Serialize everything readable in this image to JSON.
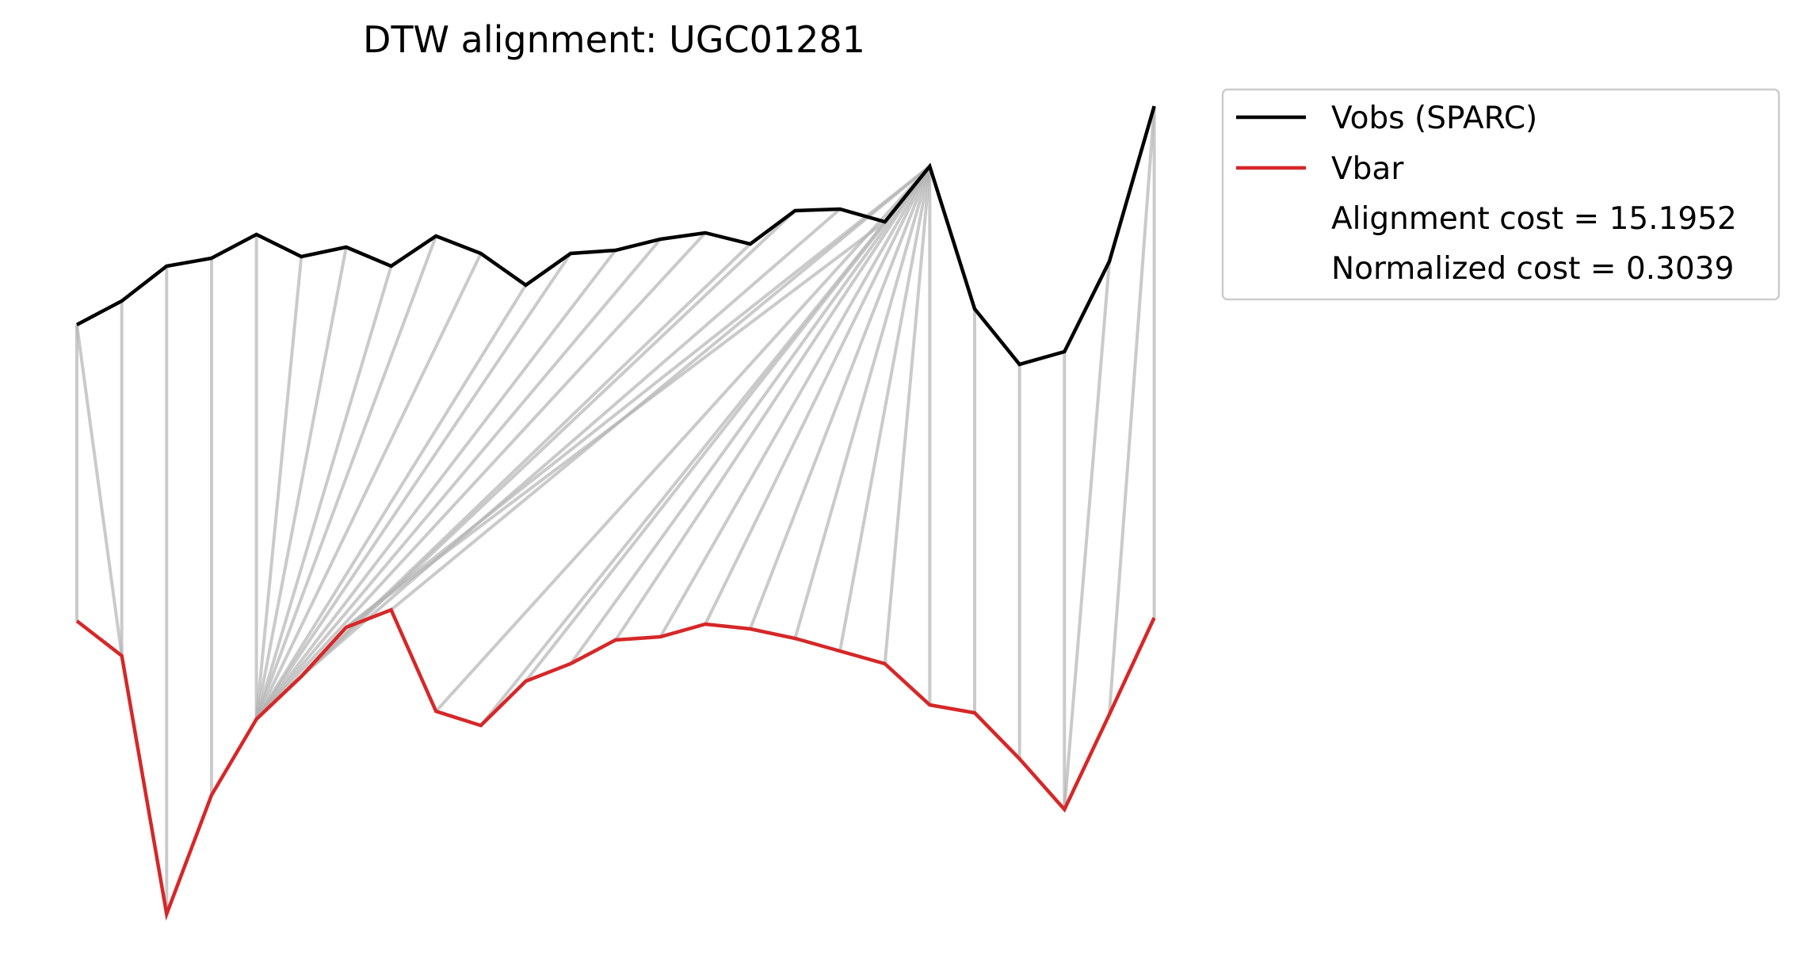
{
  "chart_data": {
    "type": "line",
    "title": "DTW alignment: UGC01281",
    "xlabel": "",
    "ylabel": "",
    "axes_visible": false,
    "grid": false,
    "legend_placement": "outside-upper-right",
    "series": [
      {
        "name": "Vobs (SPARC)",
        "color": "#000000",
        "values": [
          0.0,
          0.15,
          0.37,
          0.42,
          0.57,
          0.43,
          0.49,
          0.37,
          0.56,
          0.45,
          0.25,
          0.45,
          0.47,
          0.54,
          0.58,
          0.51,
          0.72,
          0.73,
          0.65,
          1.0,
          0.1,
          -0.25,
          -0.17,
          0.4,
          1.38
        ]
      },
      {
        "name": "Vbar",
        "color": "#d62728",
        "values": [
          0.0,
          -0.22,
          -1.85,
          -1.1,
          -0.62,
          -0.35,
          -0.04,
          0.07,
          -0.57,
          -0.66,
          -0.38,
          -0.27,
          -0.12,
          -0.1,
          -0.02,
          -0.05,
          -0.11,
          -0.19,
          -0.27,
          -0.53,
          -0.58,
          -0.87,
          -1.19,
          -0.59,
          0.02
        ]
      }
    ],
    "alignment_pairs": [
      [
        0,
        0
      ],
      [
        0,
        1
      ],
      [
        1,
        1
      ],
      [
        2,
        2
      ],
      [
        3,
        3
      ],
      [
        4,
        4
      ],
      [
        5,
        4
      ],
      [
        6,
        4
      ],
      [
        7,
        4
      ],
      [
        8,
        4
      ],
      [
        9,
        4
      ],
      [
        10,
        4
      ],
      [
        11,
        4
      ],
      [
        12,
        4
      ],
      [
        13,
        4
      ],
      [
        14,
        4
      ],
      [
        15,
        4
      ],
      [
        16,
        4
      ],
      [
        17,
        5
      ],
      [
        18,
        6
      ],
      [
        19,
        6
      ],
      [
        19,
        7
      ],
      [
        19,
        8
      ],
      [
        19,
        9
      ],
      [
        19,
        10
      ],
      [
        19,
        11
      ],
      [
        19,
        12
      ],
      [
        19,
        13
      ],
      [
        19,
        14
      ],
      [
        19,
        15
      ],
      [
        19,
        16
      ],
      [
        19,
        17
      ],
      [
        19,
        18
      ],
      [
        19,
        19
      ],
      [
        20,
        20
      ],
      [
        21,
        21
      ],
      [
        22,
        22
      ],
      [
        23,
        22
      ],
      [
        24,
        23
      ],
      [
        24,
        24
      ]
    ],
    "alignment_line_color": "#b3b3b3",
    "annotations": [
      "Alignment cost = 15.1952",
      "Normalized cost = 0.3039"
    ]
  }
}
